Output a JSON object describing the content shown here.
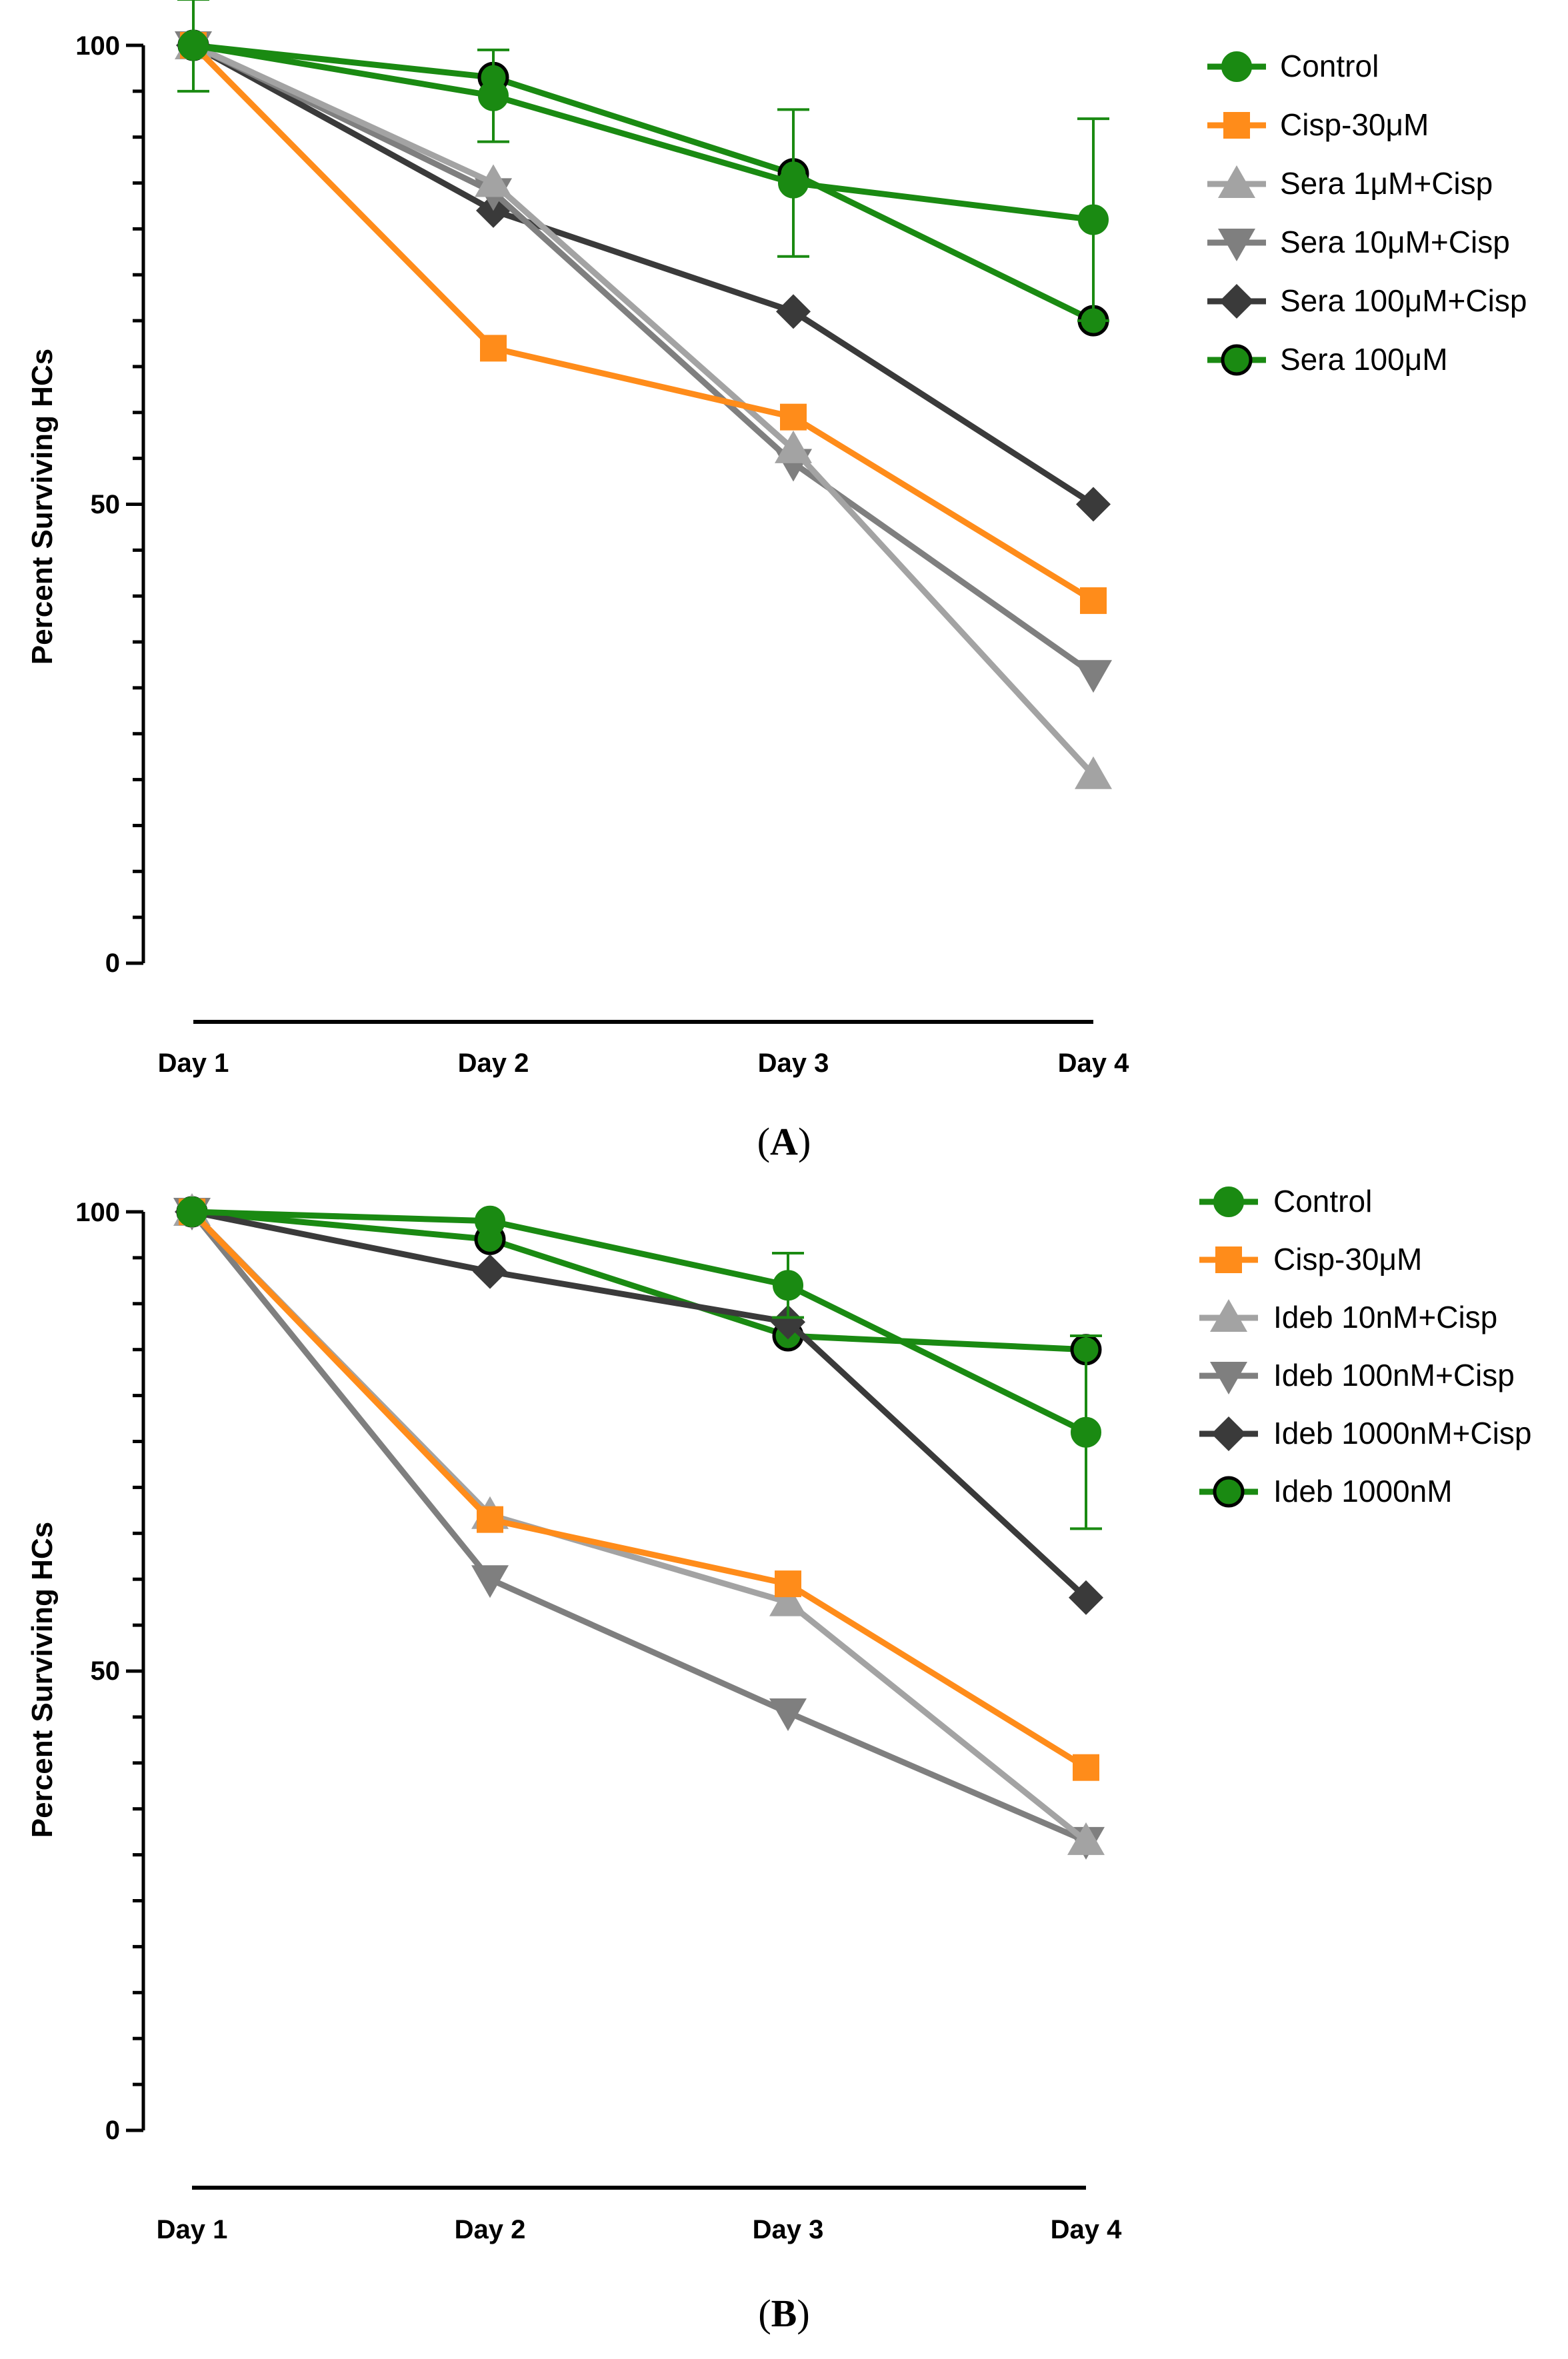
{
  "chart_data": [
    {
      "type": "line",
      "panel_label": "A",
      "ylabel": "Percent Surviving HCs",
      "xlabel": "",
      "categories": [
        "Day 1",
        "Day 2",
        "Day 3",
        "Day 4"
      ],
      "ylim": [
        0,
        100
      ],
      "yticks": [
        "0",
        "50",
        "100"
      ],
      "legend_position": "top-right",
      "grid": false,
      "series": [
        {
          "name": "Control",
          "values": [
            100,
            94.5,
            85,
            81
          ],
          "color": "#1a8a12",
          "marker": "circle",
          "error": [
            5,
            5,
            8,
            11
          ]
        },
        {
          "name": "Cisp-30μM",
          "values": [
            100,
            67,
            59.5,
            39.5
          ],
          "color": "#ff8c1a",
          "marker": "square",
          "error": [
            0,
            0,
            0,
            0
          ]
        },
        {
          "name": "Sera 1μM+Cisp",
          "values": [
            100,
            85,
            56,
            20.5
          ],
          "color": "#a3a3a3",
          "marker": "triangle-up",
          "error": [
            0,
            0,
            0,
            0
          ]
        },
        {
          "name": "Sera 10μM+Cisp",
          "values": [
            100,
            84,
            54.5,
            31.5
          ],
          "color": "#7f7f7f",
          "marker": "triangle-down",
          "error": [
            0,
            0,
            0,
            0
          ]
        },
        {
          "name": "Sera 100μM+Cisp",
          "values": [
            100,
            82,
            71,
            50
          ],
          "color": "#3a3a3a",
          "marker": "diamond",
          "error": [
            0,
            0,
            0,
            0
          ]
        },
        {
          "name": "Sera 100μM",
          "values": [
            100,
            96.5,
            86,
            70
          ],
          "color": "#1a8a12",
          "marker": "circle-outlined",
          "error": [
            0,
            0,
            0,
            0
          ]
        }
      ]
    },
    {
      "type": "line",
      "panel_label": "B",
      "ylabel": "Percent Surviving HCs",
      "xlabel": "",
      "categories": [
        "Day 1",
        "Day 2",
        "Day 3",
        "Day 4"
      ],
      "ylim": [
        0,
        100
      ],
      "yticks": [
        "0",
        "50",
        "100"
      ],
      "legend_position": "top-right",
      "grid": false,
      "series": [
        {
          "name": "Control",
          "values": [
            100,
            99,
            92,
            76
          ],
          "color": "#1a8a12",
          "marker": "circle",
          "error": [
            0,
            0,
            3.5,
            10.5
          ]
        },
        {
          "name": "Cisp-30μM",
          "values": [
            100,
            66.5,
            59.5,
            39.5
          ],
          "color": "#ff8c1a",
          "marker": "square",
          "error": [
            0,
            0,
            0,
            0
          ]
        },
        {
          "name": "Ideb 10nM+Cisp",
          "values": [
            100,
            67,
            57.5,
            31.5
          ],
          "color": "#a3a3a3",
          "marker": "triangle-up",
          "error": [
            0,
            0,
            0,
            0
          ]
        },
        {
          "name": "Ideb 100nM+Cisp",
          "values": [
            100,
            60,
            45.5,
            31.5
          ],
          "color": "#7f7f7f",
          "marker": "triangle-down",
          "error": [
            0,
            0,
            0,
            0
          ]
        },
        {
          "name": "Ideb 1000nM+Cisp",
          "values": [
            100,
            93.5,
            88,
            58
          ],
          "color": "#3a3a3a",
          "marker": "diamond",
          "error": [
            0,
            0,
            0,
            0
          ]
        },
        {
          "name": "Ideb 1000nM",
          "values": [
            100,
            97,
            86.5,
            85
          ],
          "color": "#1a8a12",
          "marker": "circle-outlined",
          "error": [
            0,
            0,
            0,
            0
          ]
        }
      ]
    }
  ]
}
